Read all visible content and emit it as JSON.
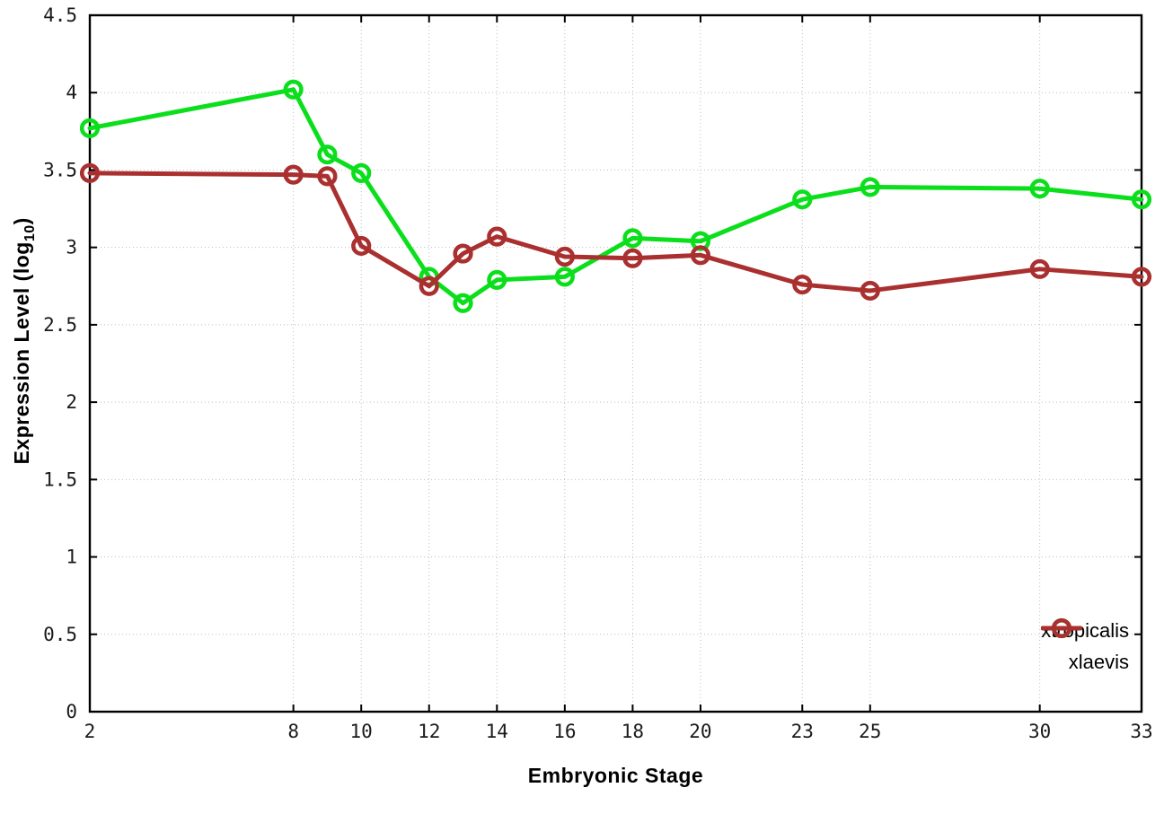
{
  "chart_data": {
    "type": "line",
    "title": "",
    "xlabel": "Embryonic Stage",
    "ylabel": "Expression Level (log10)",
    "ylabel_parts": {
      "prefix": "Expression Level (log",
      "subscript": "10",
      "suffix": ")"
    },
    "x": [
      2,
      8,
      9,
      10,
      12,
      13,
      14,
      16,
      18,
      20,
      23,
      25,
      30,
      33
    ],
    "series": [
      {
        "name": "xtropicalis",
        "color": "#0bdf1c",
        "values": [
          3.77,
          4.02,
          3.6,
          3.48,
          2.81,
          2.64,
          2.79,
          2.81,
          3.06,
          3.04,
          3.31,
          3.39,
          3.38,
          3.31
        ]
      },
      {
        "name": "xlaevis",
        "color": "#aa3030",
        "values": [
          3.48,
          3.47,
          3.46,
          3.01,
          2.75,
          2.96,
          3.07,
          2.94,
          2.93,
          2.95,
          2.76,
          2.72,
          2.86,
          2.81
        ]
      }
    ],
    "xticks": [
      2,
      8,
      10,
      12,
      14,
      16,
      18,
      20,
      23,
      25,
      30,
      33
    ],
    "yticks": [
      0,
      0.5,
      1,
      1.5,
      2,
      2.5,
      3,
      3.5,
      4,
      4.5
    ],
    "xlim": [
      2,
      33
    ],
    "ylim": [
      0,
      4.5
    ],
    "grid": true,
    "grid_color": "#bdbdbd",
    "axis_color": "#000000",
    "legend_position": "bottom-right",
    "marker": "open-circle"
  }
}
